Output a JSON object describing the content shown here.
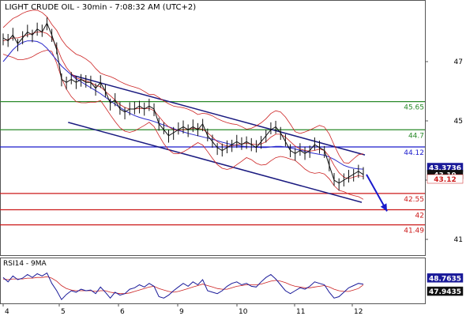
{
  "chart_data": {
    "type": "candlestick",
    "title": "LIGHT CRUDE OIL - 30min - 7:08:32 AM (UTC+2)",
    "price_axis": {
      "ticks": [
        47,
        45,
        43,
        41
      ],
      "ylim": [
        40.6,
        48.6
      ]
    },
    "x_axis": {
      "ticks": [
        "4",
        "5",
        "6",
        "9",
        "10",
        "11",
        "12"
      ]
    },
    "levels": [
      {
        "value": 45.65,
        "label": "45.65",
        "color": "#2a8a2a"
      },
      {
        "value": 44.7,
        "label": "44.7",
        "color": "#2a8a2a"
      },
      {
        "value": 44.12,
        "label": "44.12",
        "color": "#1a1acc"
      },
      {
        "value": 42.55,
        "label": "42.55",
        "color": "#cc1a1a"
      },
      {
        "value": 42,
        "label": "42",
        "color": "#cc1a1a"
      },
      {
        "value": 41.49,
        "label": "41.49",
        "color": "#cc1a1a"
      }
    ],
    "price_badges": [
      {
        "value": 43.3736,
        "label": "43.3736",
        "bg": "#1a1a99",
        "fg": "#ffffff"
      },
      {
        "value": 43.19,
        "label": "43.19",
        "bg": "#111111",
        "fg": "#ffffff"
      },
      {
        "value": 43.12,
        "label": "43.12",
        "bg": "#ffffff",
        "fg": "#cc1a1a"
      }
    ],
    "prices": [
      47.8,
      47.7,
      47.9,
      47.6,
      47.8,
      48.0,
      47.9,
      48.1,
      48.0,
      48.3,
      47.9,
      47.4,
      46.4,
      46.3,
      46.4,
      46.3,
      46.4,
      46.3,
      46.3,
      46.1,
      46.3,
      46.0,
      45.6,
      45.7,
      45.4,
      45.3,
      45.4,
      45.4,
      45.5,
      45.4,
      45.5,
      45.4,
      44.9,
      44.7,
      44.5,
      44.6,
      44.7,
      44.8,
      44.7,
      44.8,
      44.7,
      44.9,
      44.5,
      44.3,
      44.1,
      44.0,
      44.1,
      44.2,
      44.3,
      44.2,
      44.3,
      44.2,
      44.1,
      44.3,
      44.5,
      44.7,
      44.8,
      44.6,
      44.3,
      44.0,
      43.9,
      44.0,
      43.9,
      44.0,
      44.2,
      44.1,
      44.0,
      43.5,
      43.0,
      42.9,
      43.0,
      43.1,
      43.2,
      43.3,
      43.19
    ],
    "ma_fast": [
      47.7,
      47.75,
      47.8,
      47.8,
      47.85,
      47.9,
      47.95,
      48.0,
      48.0,
      47.95,
      47.8,
      47.5,
      47.1,
      46.8,
      46.6,
      46.45,
      46.4,
      46.35,
      46.3,
      46.2,
      46.15,
      46.0,
      45.85,
      45.7,
      45.55,
      45.45,
      45.4,
      45.4,
      45.42,
      45.42,
      45.42,
      45.35,
      45.15,
      44.95,
      44.8,
      44.7,
      44.68,
      44.7,
      44.72,
      44.74,
      44.74,
      44.72,
      44.6,
      44.45,
      44.3,
      44.2,
      44.15,
      44.15,
      44.2,
      44.22,
      44.24,
      44.22,
      44.2,
      44.22,
      44.3,
      44.45,
      44.55,
      44.55,
      44.45,
      44.3,
      44.15,
      44.05,
      44.0,
      43.98,
      44.0,
      44.05,
      44.0,
      43.8,
      43.5,
      43.25,
      43.1,
      43.05,
      43.1,
      43.15,
      43.12
    ],
    "ma_slow": [
      47.0,
      47.2,
      47.4,
      47.55,
      47.65,
      47.7,
      47.7,
      47.68,
      47.6,
      47.45,
      47.25,
      47.05,
      46.85,
      46.7,
      46.55,
      46.42,
      46.32,
      46.22,
      46.12,
      46.02,
      45.92,
      45.8,
      45.68,
      45.56,
      45.45,
      45.35,
      45.26,
      45.18,
      45.12,
      45.07,
      45.03,
      44.98,
      44.92,
      44.86,
      44.8,
      44.74,
      44.68,
      44.63,
      44.58,
      44.54,
      44.5,
      44.46,
      44.42,
      44.38,
      44.33,
      44.28,
      44.24,
      44.2,
      44.17,
      44.15,
      44.13,
      44.12,
      44.11,
      44.1,
      44.1,
      44.12,
      44.14,
      44.14,
      44.12,
      44.09,
      44.05,
      44.01,
      43.97,
      43.93,
      43.9,
      43.87,
      43.84,
      43.78,
      43.7,
      43.6,
      43.5,
      43.44,
      43.4,
      43.38,
      43.37
    ],
    "rsi": {
      "label": "RSI14 - 9MA",
      "badges": [
        {
          "value": 48.7635,
          "label": "48.7635",
          "bg": "#1a1a99",
          "fg": "#ffffff"
        },
        {
          "value": 47.9435,
          "label": "47.9435",
          "bg": "#111111",
          "fg": "#ffffff"
        }
      ],
      "values": [
        58,
        52,
        60,
        55,
        57,
        62,
        58,
        63,
        60,
        64,
        50,
        40,
        28,
        35,
        40,
        38,
        42,
        40,
        41,
        36,
        45,
        38,
        30,
        38,
        34,
        36,
        42,
        44,
        48,
        45,
        50,
        46,
        32,
        30,
        34,
        40,
        45,
        50,
        46,
        52,
        48,
        55,
        40,
        38,
        36,
        40,
        46,
        50,
        52,
        48,
        50,
        46,
        45,
        52,
        58,
        62,
        56,
        48,
        40,
        36,
        40,
        44,
        42,
        46,
        52,
        50,
        48,
        38,
        30,
        32,
        38,
        44,
        47,
        50,
        48.76
      ],
      "ma": [
        56,
        55,
        56,
        56,
        56,
        57,
        57,
        58,
        58,
        59,
        57,
        53,
        47,
        43,
        41,
        40,
        40,
        40,
        40,
        39,
        40,
        40,
        38,
        37,
        36,
        36,
        37,
        39,
        41,
        43,
        45,
        46,
        43,
        41,
        39,
        38,
        39,
        41,
        43,
        45,
        47,
        49,
        47,
        45,
        43,
        42,
        42,
        44,
        46,
        47,
        48,
        48,
        48,
        49,
        51,
        53,
        54,
        53,
        51,
        48,
        46,
        45,
        44,
        44,
        45,
        46,
        47,
        45,
        42,
        40,
        39,
        39,
        41,
        43,
        47.94
      ]
    }
  }
}
